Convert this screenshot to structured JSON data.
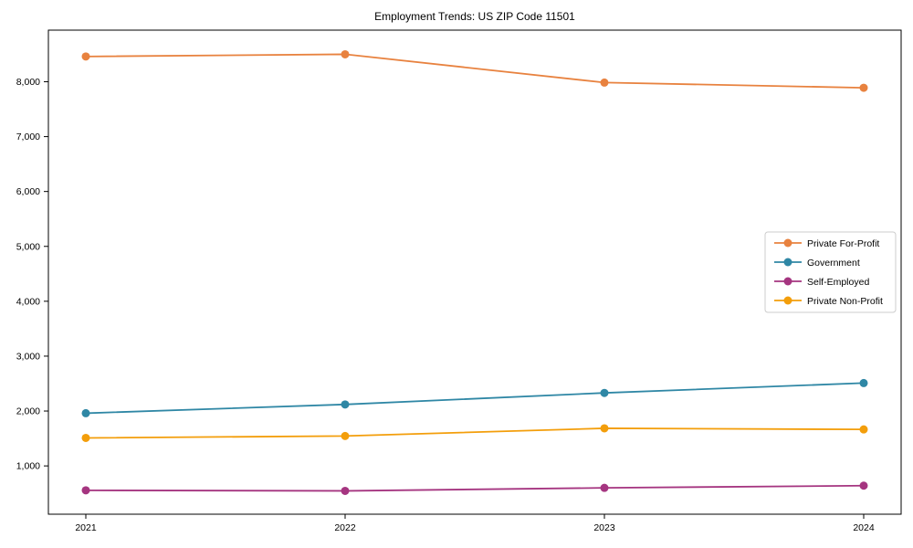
{
  "chart_data": {
    "type": "line",
    "title": "Employment Trends: US ZIP Code 11501",
    "categories": [
      "2021",
      "2022",
      "2023",
      "2024"
    ],
    "series": [
      {
        "name": "Private For-Profit",
        "color": "#e8823f",
        "values": [
          8460,
          8500,
          7985,
          7890
        ]
      },
      {
        "name": "Government",
        "color": "#2f87a5",
        "values": [
          1960,
          2120,
          2330,
          2510
        ]
      },
      {
        "name": "Self-Employed",
        "color": "#a53580",
        "values": [
          555,
          545,
          600,
          640
        ]
      },
      {
        "name": "Private Non-Profit",
        "color": "#f39e0b",
        "values": [
          1510,
          1545,
          1685,
          1665
        ]
      }
    ],
    "xlabel": "",
    "ylabel": "",
    "ylim": [
      120,
      8940
    ],
    "yticks": [
      1000,
      2000,
      3000,
      4000,
      5000,
      6000,
      7000,
      8000
    ],
    "ytick_labels": [
      "1,000",
      "2,000",
      "3,000",
      "4,000",
      "5,000",
      "6,000",
      "7,000",
      "8,000"
    ],
    "grid": false,
    "legend_position": "center right",
    "marker": "circle",
    "axis_color": "#000000",
    "legend_border_color": "#cccccc",
    "background": "#ffffff"
  }
}
